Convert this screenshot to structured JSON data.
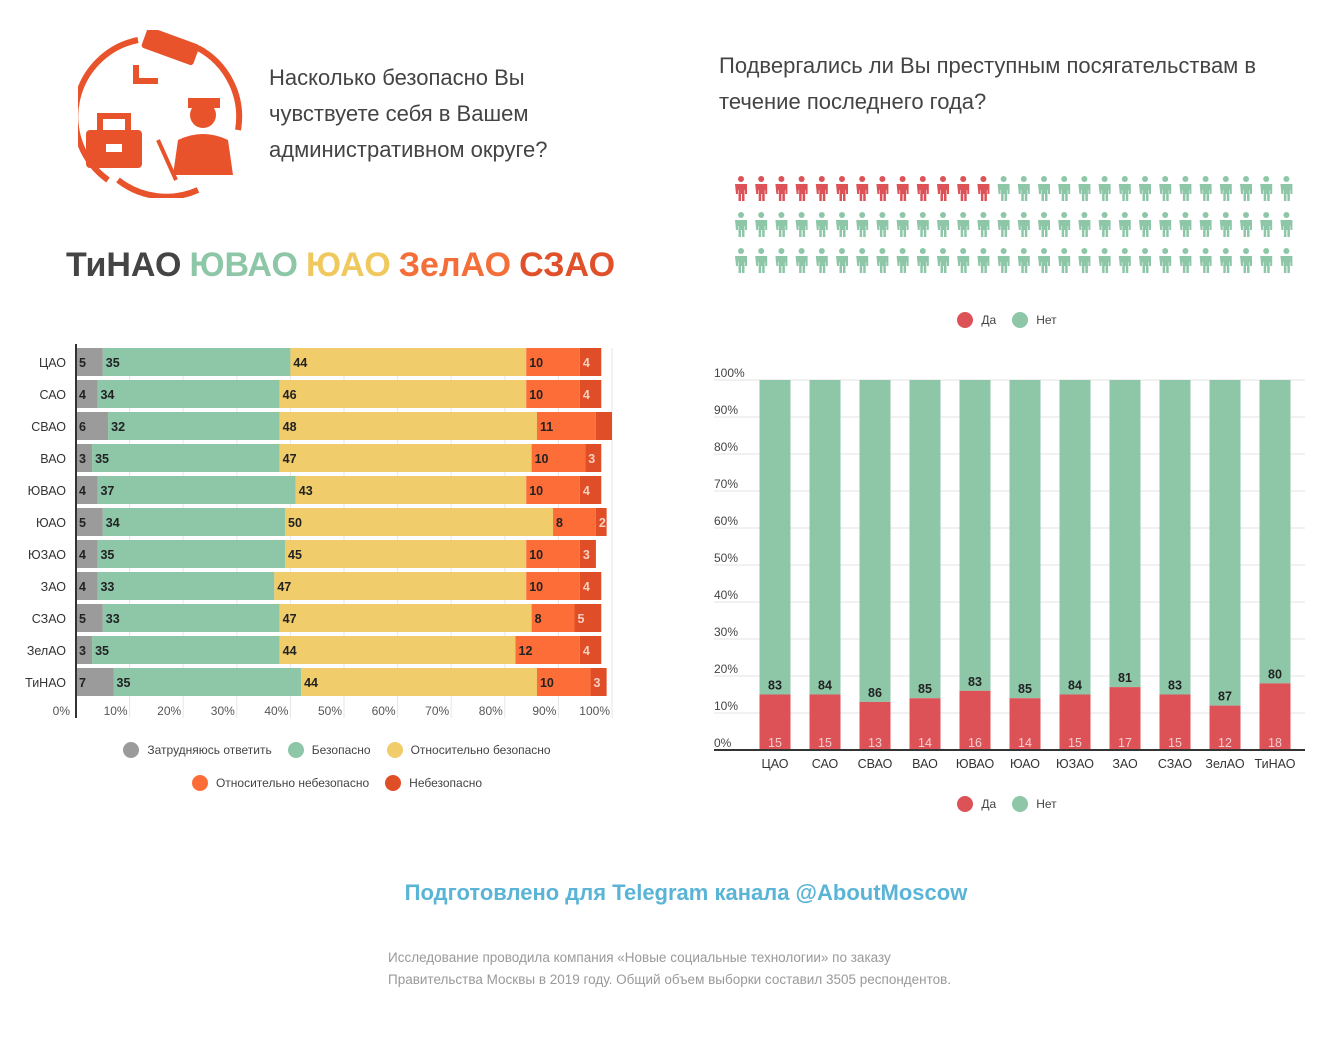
{
  "left": {
    "question": "Насколько безопасно Вы чувствуете себя в Вашем административном округе?",
    "okrug_title": [
      {
        "text": "ТиНАО",
        "color": "#444444"
      },
      {
        "text": "ЮВАО",
        "color": "#8ec6a8"
      },
      {
        "text": "ЮАО",
        "color": "#f0c95e"
      },
      {
        "text": "ЗелАО",
        "color": "#f46e3a"
      },
      {
        "text": "СЗАО",
        "color": "#e0502a"
      }
    ]
  },
  "right": {
    "question": "Подвергались ли Вы преступным посягательствам в течение последнего года?",
    "pictogram": {
      "per_row": 28,
      "rows": 3,
      "yes_count": 13,
      "yes_color": "#dc5257",
      "no_color": "#8ec6a8"
    },
    "legend": [
      {
        "label": "Да",
        "color": "#dc5257"
      },
      {
        "label": "Нет",
        "color": "#8ec6a8"
      }
    ]
  },
  "chart_data": [
    {
      "type": "bar",
      "orientation": "horizontal",
      "stacked": true,
      "categories": [
        "ЦАО",
        "САО",
        "СВАО",
        "ВАО",
        "ЮВАО",
        "ЮАО",
        "ЮЗАО",
        "ЗАО",
        "СЗАО",
        "ЗелАО",
        "ТиНАО"
      ],
      "series": [
        {
          "name": "Затрудняюсь ответить",
          "color": "#9b9b9b",
          "values": [
            5,
            4,
            6,
            3,
            4,
            5,
            4,
            4,
            5,
            3,
            7
          ]
        },
        {
          "name": "Безопасно",
          "color": "#8ec6a8",
          "values": [
            35,
            34,
            32,
            35,
            37,
            34,
            35,
            33,
            33,
            35,
            35
          ]
        },
        {
          "name": "Относительно безопасно",
          "color": "#f0cc6a",
          "values": [
            44,
            46,
            48,
            47,
            43,
            50,
            45,
            47,
            47,
            44,
            44
          ]
        },
        {
          "name": "Относительно небезопасно",
          "color": "#fd6d38",
          "values": [
            10,
            10,
            11,
            10,
            10,
            8,
            10,
            10,
            8,
            12,
            10
          ]
        },
        {
          "name": "Небезопасно",
          "color": "#e04e28",
          "values": [
            4,
            4,
            null,
            3,
            4,
            2,
            3,
            4,
            5,
            4,
            3
          ]
        }
      ],
      "xlim": [
        0,
        100
      ],
      "xticks": [
        "0%",
        "10%",
        "20%",
        "30%",
        "40%",
        "50%",
        "60%",
        "70%",
        "80%",
        "90%",
        "100%"
      ],
      "grid": true,
      "legend_position": "bottom"
    },
    {
      "type": "bar",
      "orientation": "vertical",
      "stacked": true,
      "categories": [
        "ЦАО",
        "САО",
        "СВАО",
        "ВАО",
        "ЮВАО",
        "ЮАО",
        "ЮЗАО",
        "ЗАО",
        "СЗАО",
        "ЗелАО",
        "ТиНАО"
      ],
      "series": [
        {
          "name": "Да",
          "color": "#dc5257",
          "values": [
            15,
            15,
            13,
            14,
            16,
            14,
            15,
            17,
            15,
            12,
            18
          ]
        },
        {
          "name": "Нет",
          "color": "#8ec6a8",
          "values": [
            83,
            84,
            86,
            85,
            83,
            85,
            84,
            81,
            83,
            87,
            80
          ]
        }
      ],
      "ylim": [
        0,
        100
      ],
      "yticks": [
        "0%",
        "10%",
        "20%",
        "30%",
        "40%",
        "50%",
        "60%",
        "70%",
        "80%",
        "90%",
        "100%"
      ],
      "grid": true,
      "legend_position": "top and bottom"
    }
  ],
  "footer": {
    "title": "Подготовлено для Telegram канала @AboutMoscow",
    "note": "Исследование проводила компания «Новые социальные технологии» по заказу Правительства Москвы в 2019 году. Общий объем выборки составил 3505 респондентов."
  }
}
